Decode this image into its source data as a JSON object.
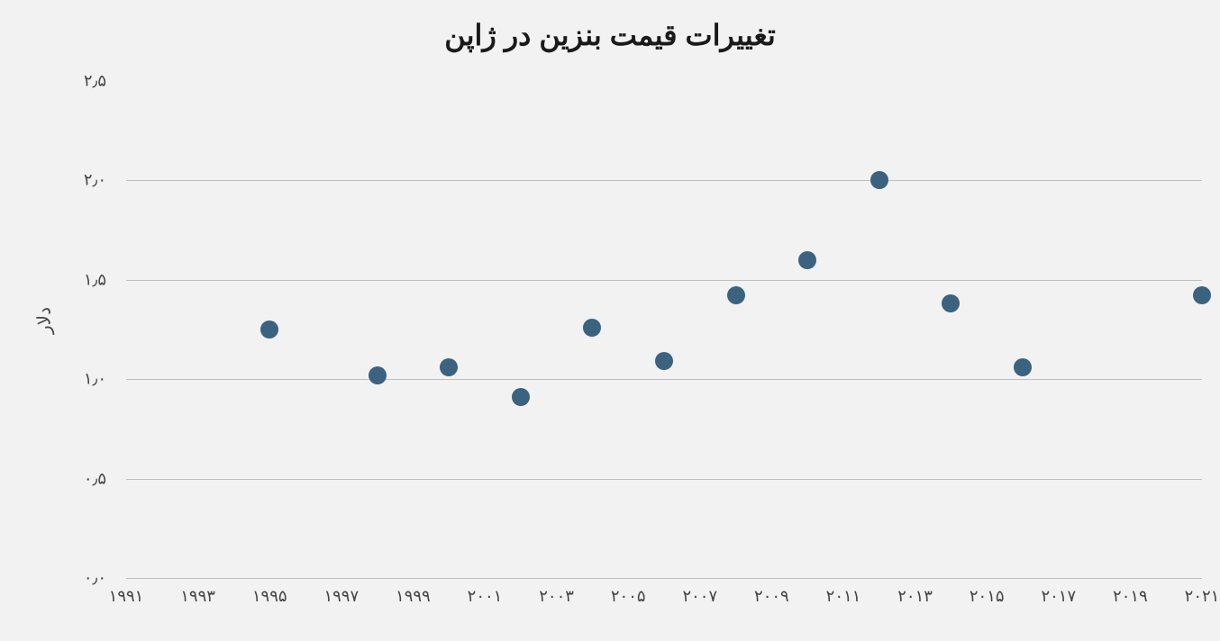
{
  "chart": {
    "type": "scatter",
    "title": "تغییرات قیمت بنزین در ژاپن",
    "title_fontsize": 32,
    "y_axis_label": "دلار",
    "background_color": "#f2f2f2",
    "grid_color": "#bfbfbf",
    "text_color": "#444444",
    "marker_color": "#3b627f",
    "marker_radius": 10,
    "ylim": [
      0.0,
      2.5
    ],
    "ytick_step": 0.5,
    "y_ticks": [
      {
        "value": 0.0,
        "label": "۰٫۰"
      },
      {
        "value": 0.5,
        "label": "۰٫۵"
      },
      {
        "value": 1.0,
        "label": "۱٫۰"
      },
      {
        "value": 1.5,
        "label": "۱٫۵"
      },
      {
        "value": 2.0,
        "label": "۲٫۰"
      },
      {
        "value": 2.5,
        "label": "۲٫۵"
      }
    ],
    "xlim": [
      1991,
      2021
    ],
    "x_ticks": [
      {
        "value": 1991,
        "label": "۱۹۹۱"
      },
      {
        "value": 1993,
        "label": "۱۹۹۳"
      },
      {
        "value": 1995,
        "label": "۱۹۹۵"
      },
      {
        "value": 1997,
        "label": "۱۹۹۷"
      },
      {
        "value": 1999,
        "label": "۱۹۹۹"
      },
      {
        "value": 2001,
        "label": "۲۰۰۱"
      },
      {
        "value": 2003,
        "label": "۲۰۰۳"
      },
      {
        "value": 2005,
        "label": "۲۰۰۵"
      },
      {
        "value": 2007,
        "label": "۲۰۰۷"
      },
      {
        "value": 2009,
        "label": "۲۰۰۹"
      },
      {
        "value": 2011,
        "label": "۲۰۱۱"
      },
      {
        "value": 2013,
        "label": "۲۰۱۳"
      },
      {
        "value": 2015,
        "label": "۲۰۱۵"
      },
      {
        "value": 2017,
        "label": "۲۰۱۷"
      },
      {
        "value": 2019,
        "label": "۲۰۱۹"
      },
      {
        "value": 2021,
        "label": "۲۰۲۱"
      }
    ],
    "points": [
      {
        "x": 1995,
        "y": 1.25
      },
      {
        "x": 1998,
        "y": 1.02
      },
      {
        "x": 2000,
        "y": 1.06
      },
      {
        "x": 2002,
        "y": 0.91
      },
      {
        "x": 2004,
        "y": 1.26
      },
      {
        "x": 2006,
        "y": 1.09
      },
      {
        "x": 2008,
        "y": 1.42
      },
      {
        "x": 2010,
        "y": 1.6
      },
      {
        "x": 2012,
        "y": 2.0
      },
      {
        "x": 2014,
        "y": 1.38
      },
      {
        "x": 2016,
        "y": 1.06
      },
      {
        "x": 2021,
        "y": 1.42
      }
    ]
  }
}
